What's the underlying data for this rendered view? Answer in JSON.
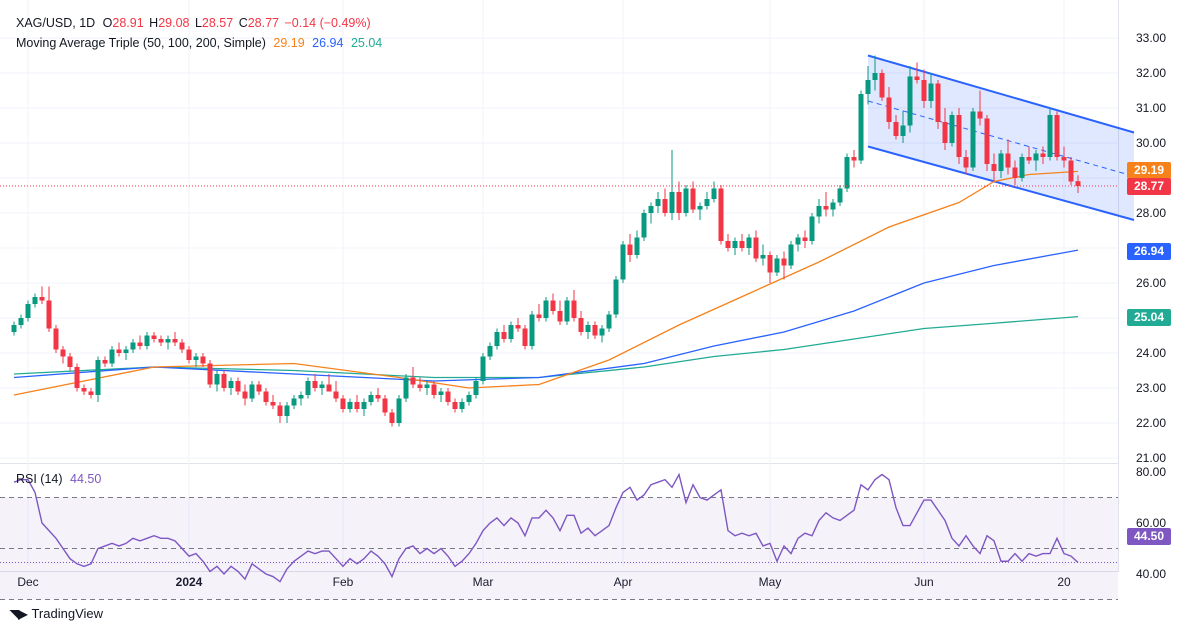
{
  "header": {
    "symbol": "XAG/USD, 1D",
    "open_label": "O",
    "open": "28.91",
    "high_label": "H",
    "high": "29.08",
    "low_label": "L",
    "low": "28.57",
    "close_label": "C",
    "close": "28.77",
    "change": "−0.14 (−0.49%)",
    "ma_title": "Moving Average Triple (50, 100, 200, Simple)",
    "ma50": "29.19",
    "ma100": "26.94",
    "ma200": "25.04",
    "rsi_title": "RSI (14)",
    "rsi_value": "44.50"
  },
  "price_labels": {
    "ma50": "29.19",
    "close": "28.77",
    "ma100": "26.94",
    "ma200": "25.04",
    "rsi": "44.50"
  },
  "branding": "TradingView",
  "colors": {
    "up": "#089981",
    "down": "#f23645",
    "ma50": "#f7821b",
    "ma100": "#2962ff",
    "ma200": "#22ab94",
    "rsi": "#7e57c2",
    "channel": "#2962ff"
  },
  "chart_data": [
    {
      "type": "candlestick",
      "title": "XAG/USD, 1D",
      "ylim": [
        20.8,
        33.2
      ],
      "y_ticks": [
        "21.00",
        "22.00",
        "23.00",
        "24.00",
        "25.00",
        "26.00",
        "27.00",
        "28.00",
        "29.00",
        "30.00",
        "31.00",
        "32.00",
        "33.00"
      ],
      "x_ticks": [
        "Dec",
        "2024",
        "Feb",
        "Mar",
        "Apr",
        "May",
        "Jun",
        "20"
      ],
      "x_tick_index": [
        2,
        25,
        47,
        67,
        87,
        108,
        130,
        150
      ],
      "ohlc": [
        [
          24.6,
          24.9,
          24.5,
          24.8
        ],
        [
          24.8,
          25.1,
          24.7,
          25.0
        ],
        [
          25.0,
          25.5,
          24.9,
          25.4
        ],
        [
          25.4,
          25.7,
          25.3,
          25.6
        ],
        [
          25.6,
          25.9,
          25.4,
          25.5
        ],
        [
          25.5,
          25.9,
          24.6,
          24.7
        ],
        [
          24.7,
          24.8,
          24.0,
          24.1
        ],
        [
          24.1,
          24.2,
          23.7,
          23.9
        ],
        [
          23.9,
          24.0,
          23.5,
          23.6
        ],
        [
          23.6,
          23.7,
          22.9,
          23.0
        ],
        [
          23.0,
          23.1,
          22.8,
          22.9
        ],
        [
          22.9,
          23.0,
          22.7,
          22.8
        ],
        [
          22.8,
          23.9,
          22.6,
          23.8
        ],
        [
          23.8,
          23.9,
          23.6,
          23.7
        ],
        [
          23.7,
          24.2,
          23.6,
          24.1
        ],
        [
          24.1,
          24.3,
          23.9,
          24.0
        ],
        [
          24.0,
          24.2,
          23.8,
          24.1
        ],
        [
          24.1,
          24.4,
          24.0,
          24.3
        ],
        [
          24.3,
          24.5,
          24.1,
          24.2
        ],
        [
          24.2,
          24.6,
          24.1,
          24.5
        ],
        [
          24.5,
          24.6,
          24.3,
          24.4
        ],
        [
          24.4,
          24.5,
          24.2,
          24.3
        ],
        [
          24.3,
          24.5,
          24.1,
          24.4
        ],
        [
          24.4,
          24.6,
          24.2,
          24.3
        ],
        [
          24.3,
          24.4,
          24.0,
          24.1
        ],
        [
          24.1,
          24.2,
          23.7,
          23.8
        ],
        [
          23.8,
          24.0,
          23.6,
          23.9
        ],
        [
          23.9,
          24.0,
          23.6,
          23.7
        ],
        [
          23.7,
          23.8,
          23.0,
          23.1
        ],
        [
          23.1,
          23.5,
          22.9,
          23.4
        ],
        [
          23.4,
          23.5,
          22.9,
          23.0
        ],
        [
          23.0,
          23.3,
          22.8,
          23.2
        ],
        [
          23.2,
          23.3,
          22.8,
          22.9
        ],
        [
          22.9,
          23.1,
          22.5,
          22.7
        ],
        [
          22.7,
          23.2,
          22.6,
          23.1
        ],
        [
          23.1,
          23.2,
          22.8,
          22.9
        ],
        [
          22.9,
          23.0,
          22.5,
          22.6
        ],
        [
          22.6,
          22.8,
          22.4,
          22.5
        ],
        [
          22.5,
          22.6,
          22.0,
          22.2
        ],
        [
          22.2,
          22.6,
          22.0,
          22.5
        ],
        [
          22.5,
          22.8,
          22.4,
          22.7
        ],
        [
          22.7,
          22.9,
          22.5,
          22.8
        ],
        [
          22.8,
          23.3,
          22.7,
          23.2
        ],
        [
          23.2,
          23.4,
          22.9,
          23.0
        ],
        [
          23.0,
          23.2,
          22.8,
          23.1
        ],
        [
          23.1,
          23.4,
          22.9,
          22.9
        ],
        [
          22.9,
          23.2,
          22.6,
          22.7
        ],
        [
          22.7,
          22.8,
          22.3,
          22.4
        ],
        [
          22.4,
          22.7,
          22.3,
          22.6
        ],
        [
          22.6,
          22.8,
          22.3,
          22.4
        ],
        [
          22.4,
          22.7,
          22.2,
          22.6
        ],
        [
          22.6,
          22.9,
          22.5,
          22.8
        ],
        [
          22.8,
          23.0,
          22.6,
          22.7
        ],
        [
          22.7,
          22.8,
          22.2,
          22.3
        ],
        [
          22.3,
          22.4,
          21.9,
          22.0
        ],
        [
          22.0,
          22.8,
          21.9,
          22.7
        ],
        [
          22.7,
          23.4,
          22.6,
          23.3
        ],
        [
          23.3,
          23.6,
          23.0,
          23.1
        ],
        [
          23.1,
          23.3,
          22.9,
          23.0
        ],
        [
          23.0,
          23.2,
          22.8,
          23.1
        ],
        [
          23.1,
          23.2,
          22.7,
          22.8
        ],
        [
          22.8,
          23.0,
          22.6,
          22.9
        ],
        [
          22.9,
          23.0,
          22.5,
          22.6
        ],
        [
          22.6,
          22.7,
          22.3,
          22.4
        ],
        [
          22.4,
          22.7,
          22.3,
          22.6
        ],
        [
          22.6,
          22.9,
          22.5,
          22.8
        ],
        [
          22.8,
          23.3,
          22.7,
          23.2
        ],
        [
          23.2,
          24.0,
          23.1,
          23.9
        ],
        [
          23.9,
          24.3,
          23.8,
          24.2
        ],
        [
          24.2,
          24.7,
          24.1,
          24.6
        ],
        [
          24.6,
          24.8,
          24.3,
          24.4
        ],
        [
          24.4,
          24.9,
          24.3,
          24.8
        ],
        [
          24.8,
          25.0,
          24.6,
          24.7
        ],
        [
          24.7,
          24.8,
          24.1,
          24.2
        ],
        [
          24.2,
          25.2,
          24.1,
          25.1
        ],
        [
          25.1,
          25.4,
          24.9,
          25.0
        ],
        [
          25.0,
          25.6,
          24.9,
          25.5
        ],
        [
          25.5,
          25.7,
          25.1,
          25.2
        ],
        [
          25.2,
          25.5,
          24.8,
          24.9
        ],
        [
          24.9,
          25.6,
          24.8,
          25.5
        ],
        [
          25.5,
          25.8,
          24.9,
          25.0
        ],
        [
          25.0,
          25.2,
          24.5,
          24.6
        ],
        [
          24.6,
          24.9,
          24.4,
          24.8
        ],
        [
          24.8,
          24.9,
          24.4,
          24.5
        ],
        [
          24.5,
          24.8,
          24.3,
          24.7
        ],
        [
          24.7,
          25.2,
          24.6,
          25.1
        ],
        [
          25.1,
          26.2,
          25.0,
          26.1
        ],
        [
          26.1,
          27.2,
          26.0,
          27.1
        ],
        [
          27.1,
          27.4,
          26.6,
          26.8
        ],
        [
          26.8,
          27.5,
          26.7,
          27.3
        ],
        [
          27.3,
          28.1,
          27.2,
          28.0
        ],
        [
          28.0,
          28.3,
          27.7,
          28.2
        ],
        [
          28.2,
          28.6,
          28.0,
          28.4
        ],
        [
          28.4,
          28.7,
          27.9,
          28.0
        ],
        [
          28.0,
          29.8,
          27.8,
          28.6
        ],
        [
          28.6,
          28.9,
          27.8,
          28.0
        ],
        [
          28.0,
          28.8,
          27.9,
          28.7
        ],
        [
          28.7,
          28.9,
          28.0,
          28.1
        ],
        [
          28.1,
          28.3,
          27.8,
          28.2
        ],
        [
          28.2,
          28.6,
          28.1,
          28.4
        ],
        [
          28.4,
          28.9,
          28.3,
          28.7
        ],
        [
          28.7,
          28.8,
          27.1,
          27.2
        ],
        [
          27.2,
          27.4,
          26.9,
          27.0
        ],
        [
          27.0,
          27.3,
          26.8,
          27.2
        ],
        [
          27.2,
          27.4,
          26.9,
          27.0
        ],
        [
          27.0,
          27.4,
          26.8,
          27.3
        ],
        [
          27.3,
          27.5,
          26.6,
          26.7
        ],
        [
          26.7,
          27.1,
          26.5,
          26.8
        ],
        [
          26.8,
          26.9,
          26.0,
          26.3
        ],
        [
          26.3,
          26.8,
          26.2,
          26.7
        ],
        [
          26.7,
          26.9,
          26.1,
          26.5
        ],
        [
          26.5,
          27.2,
          26.4,
          27.1
        ],
        [
          27.1,
          27.4,
          26.9,
          27.3
        ],
        [
          27.3,
          27.5,
          27.0,
          27.2
        ],
        [
          27.2,
          28.0,
          27.1,
          27.9
        ],
        [
          27.9,
          28.4,
          27.7,
          28.2
        ],
        [
          28.2,
          28.6,
          27.9,
          28.1
        ],
        [
          28.1,
          28.4,
          27.9,
          28.3
        ],
        [
          28.3,
          28.8,
          28.2,
          28.7
        ],
        [
          28.7,
          29.7,
          28.6,
          29.6
        ],
        [
          29.6,
          29.8,
          29.3,
          29.5
        ],
        [
          29.5,
          31.5,
          29.4,
          31.4
        ],
        [
          31.4,
          32.2,
          31.1,
          31.8
        ],
        [
          31.8,
          32.5,
          31.5,
          32.0
        ],
        [
          32.0,
          32.1,
          31.2,
          31.3
        ],
        [
          31.3,
          31.6,
          30.4,
          30.6
        ],
        [
          30.6,
          30.8,
          30.1,
          30.2
        ],
        [
          30.2,
          30.9,
          30.0,
          30.5
        ],
        [
          30.5,
          32.2,
          30.3,
          31.9
        ],
        [
          31.9,
          32.3,
          31.7,
          31.8
        ],
        [
          31.8,
          32.1,
          31.0,
          31.2
        ],
        [
          31.2,
          32.0,
          31.0,
          31.7
        ],
        [
          31.7,
          31.8,
          30.4,
          30.6
        ],
        [
          30.6,
          31.0,
          29.8,
          30.0
        ],
        [
          30.0,
          30.9,
          29.9,
          30.8
        ],
        [
          30.8,
          31.0,
          29.4,
          29.6
        ],
        [
          29.6,
          29.8,
          29.1,
          29.3
        ],
        [
          29.3,
          31.0,
          29.2,
          30.9
        ],
        [
          30.9,
          31.5,
          30.5,
          30.7
        ],
        [
          30.7,
          30.8,
          29.2,
          29.4
        ],
        [
          29.4,
          29.7,
          28.9,
          29.2
        ],
        [
          29.2,
          29.8,
          29.0,
          29.7
        ],
        [
          29.7,
          30.1,
          29.1,
          29.3
        ],
        [
          29.3,
          29.5,
          28.8,
          29.0
        ],
        [
          29.0,
          29.7,
          28.9,
          29.6
        ],
        [
          29.6,
          29.9,
          29.4,
          29.5
        ],
        [
          29.5,
          29.8,
          29.2,
          29.7
        ],
        [
          29.7,
          29.9,
          29.4,
          29.6
        ],
        [
          29.6,
          31.0,
          29.5,
          30.8
        ],
        [
          30.8,
          30.9,
          29.5,
          29.6
        ],
        [
          29.6,
          29.9,
          29.3,
          29.5
        ],
        [
          29.5,
          29.6,
          28.8,
          28.9
        ],
        [
          28.91,
          29.08,
          28.57,
          28.77
        ]
      ],
      "ma50": [
        [
          0,
          22.8
        ],
        [
          20,
          23.6
        ],
        [
          40,
          23.7
        ],
        [
          55,
          23.3
        ],
        [
          65,
          23.0
        ],
        [
          75,
          23.1
        ],
        [
          85,
          23.8
        ],
        [
          95,
          24.8
        ],
        [
          105,
          25.7
        ],
        [
          115,
          26.6
        ],
        [
          125,
          27.6
        ],
        [
          135,
          28.3
        ],
        [
          140,
          28.9
        ],
        [
          145,
          29.1
        ],
        [
          152,
          29.19
        ]
      ],
      "ma100": [
        [
          0,
          23.3
        ],
        [
          20,
          23.6
        ],
        [
          40,
          23.4
        ],
        [
          60,
          23.2
        ],
        [
          75,
          23.3
        ],
        [
          90,
          23.7
        ],
        [
          100,
          24.2
        ],
        [
          110,
          24.6
        ],
        [
          120,
          25.2
        ],
        [
          130,
          26.0
        ],
        [
          140,
          26.5
        ],
        [
          152,
          26.94
        ]
      ],
      "ma200": [
        [
          0,
          23.4
        ],
        [
          20,
          23.6
        ],
        [
          40,
          23.5
        ],
        [
          60,
          23.3
        ],
        [
          75,
          23.3
        ],
        [
          90,
          23.6
        ],
        [
          100,
          23.9
        ],
        [
          110,
          24.1
        ],
        [
          120,
          24.4
        ],
        [
          130,
          24.7
        ],
        [
          140,
          24.85
        ],
        [
          152,
          25.04
        ]
      ],
      "channel": {
        "start_index": 122,
        "end_index": 160,
        "upper": [
          32.5,
          30.3
        ],
        "lower": [
          29.9,
          27.8
        ]
      }
    },
    {
      "type": "line",
      "title": "RSI (14)",
      "ylim": [
        35,
        82
      ],
      "y_ticks": [
        "40.00",
        "60.00",
        "80.00"
      ],
      "bands": [
        30,
        50,
        70
      ],
      "values": [
        76,
        77,
        77,
        72,
        60,
        57,
        54,
        50,
        46,
        44,
        43,
        44,
        50,
        51,
        52,
        51,
        52,
        54,
        53,
        54,
        55,
        54,
        54,
        53,
        50,
        47,
        48,
        45,
        41,
        43,
        40,
        43,
        41,
        38,
        44,
        42,
        40,
        39,
        37,
        42,
        45,
        47,
        49,
        48,
        49,
        49,
        46,
        43,
        46,
        44,
        46,
        49,
        47,
        44,
        39,
        46,
        50,
        51,
        48,
        50,
        48,
        50,
        47,
        43,
        45,
        48,
        52,
        57,
        60,
        62,
        59,
        62,
        60,
        55,
        62,
        62,
        65,
        62,
        57,
        63,
        63,
        56,
        58,
        55,
        57,
        59,
        66,
        72,
        74,
        69,
        71,
        75,
        76,
        77,
        74,
        79,
        68,
        75,
        70,
        69,
        71,
        73,
        57,
        55,
        56,
        55,
        56,
        51,
        52,
        45,
        51,
        48,
        54,
        56,
        55,
        61,
        64,
        62,
        61,
        63,
        65,
        75,
        73,
        77,
        79,
        77,
        66,
        59,
        59,
        64,
        69,
        69,
        65,
        61,
        54,
        51,
        55,
        51,
        48,
        55,
        53,
        45,
        45,
        48,
        45,
        48,
        47,
        48,
        48,
        54,
        48,
        47,
        44.5
      ],
      "last": 44.5
    }
  ]
}
